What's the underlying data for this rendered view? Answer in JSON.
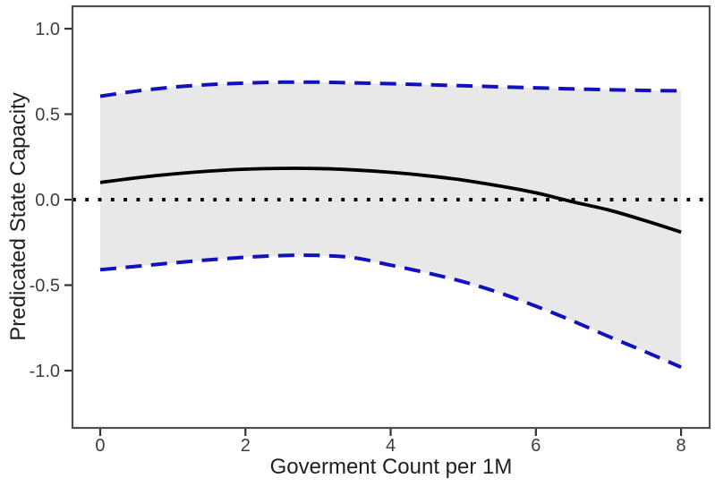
{
  "figure": {
    "background": "#FFFFFF",
    "panel_border_color": "#4F4F4F",
    "tick_color": "#333333"
  },
  "chart_data": {
    "type": "line",
    "title": "",
    "xlabel": "Goverment Count per 1M",
    "ylabel": "Predicated State Capacity",
    "xlim": [
      -0.382,
      8.393
    ],
    "ylim": [
      -1.335,
      1.131
    ],
    "grid": false,
    "legend": "none",
    "panel_background": "#FFFFFF",
    "x_ticks": [
      {
        "value": 0,
        "label": "0"
      },
      {
        "value": 2,
        "label": "2"
      },
      {
        "value": 4,
        "label": "4"
      },
      {
        "value": 6,
        "label": "6"
      },
      {
        "value": 8,
        "label": "8"
      }
    ],
    "y_ticks": [
      {
        "value": 1.0,
        "label": "1.0"
      },
      {
        "value": 0.5,
        "label": "0.5"
      },
      {
        "value": 0.0,
        "label": "0.0"
      },
      {
        "value": -0.5,
        "label": "-0.5"
      },
      {
        "value": -1.0,
        "label": "-1.0"
      }
    ],
    "x": [
      0,
      0.5,
      1,
      1.5,
      2,
      2.5,
      3,
      3.5,
      4,
      4.5,
      5,
      5.5,
      6,
      6.5,
      7,
      7.5,
      8
    ],
    "series": [
      {
        "name": "predicted_fit",
        "color": "#000000",
        "style": "solid",
        "width": 3.8,
        "values": [
          0.1,
          0.128,
          0.15,
          0.167,
          0.178,
          0.183,
          0.182,
          0.174,
          0.16,
          0.14,
          0.114,
          0.08,
          0.04,
          -0.012,
          -0.06,
          -0.122,
          -0.19
        ]
      },
      {
        "name": "ci_upper",
        "color": "#1111BE",
        "style": "dashed",
        "width": 4,
        "values": [
          0.605,
          0.635,
          0.658,
          0.673,
          0.682,
          0.687,
          0.687,
          0.683,
          0.678,
          0.672,
          0.666,
          0.66,
          0.654,
          0.648,
          0.643,
          0.639,
          0.636
        ]
      },
      {
        "name": "ci_lower",
        "color": "#1111BE",
        "style": "dashed",
        "width": 4,
        "values": [
          -0.41,
          -0.39,
          -0.37,
          -0.352,
          -0.337,
          -0.327,
          -0.326,
          -0.34,
          -0.383,
          -0.428,
          -0.48,
          -0.545,
          -0.623,
          -0.708,
          -0.8,
          -0.888,
          -0.98
        ]
      }
    ],
    "confidence_band": {
      "lower": "ci_lower",
      "upper": "ci_upper",
      "color": "#E8E8E8"
    },
    "reference_line": {
      "y": 0.0,
      "color": "#000000",
      "style": "dotted",
      "width": 4
    }
  }
}
